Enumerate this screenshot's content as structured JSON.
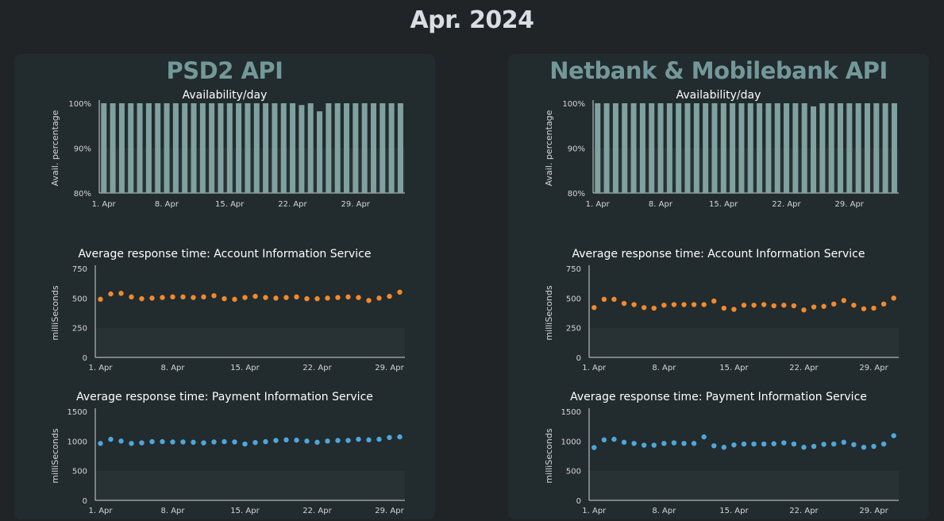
{
  "page": {
    "title": "Apr. 2024"
  },
  "colors": {
    "bar": "#7fa1a0",
    "dot_orange": "#f08a2e",
    "dot_blue": "#4fa6dc",
    "panel_title": "#73989a"
  },
  "panels": [
    {
      "title": "PSD2 API",
      "charts": [
        {
          "type": "bar",
          "title": "Availability/day",
          "ylabel": "Avail. percentage",
          "ylim": [
            80,
            100
          ],
          "yticks": [
            "100%",
            "90%",
            "80%"
          ],
          "xticks": [
            "1. Apr",
            "8. Apr",
            "15. Apr",
            "22. Apr",
            "29. Apr"
          ],
          "values": [
            100,
            100,
            100,
            100,
            100,
            100,
            100,
            100,
            100,
            100,
            100,
            100,
            100,
            100,
            100,
            100,
            100,
            100,
            100,
            100,
            100,
            100,
            99.6,
            100,
            98.2,
            100,
            100,
            100,
            100,
            100,
            100,
            100,
            100,
            100
          ]
        },
        {
          "type": "scatter",
          "title": "Average response time: Account Information Service",
          "ylabel": "milliSeconds",
          "ylim": [
            0,
            750
          ],
          "yticks": [
            "750",
            "500",
            "250",
            "0"
          ],
          "xticks": [
            "1. Apr",
            "8. Apr",
            "15. Apr",
            "22. Apr",
            "29. Apr"
          ],
          "color": "orange",
          "values": [
            490,
            535,
            540,
            510,
            495,
            500,
            505,
            510,
            510,
            505,
            510,
            520,
            495,
            490,
            505,
            515,
            505,
            500,
            505,
            510,
            495,
            495,
            500,
            505,
            510,
            505,
            480,
            500,
            515,
            550
          ]
        },
        {
          "type": "scatter",
          "title": "Average response time: Payment Information Service",
          "ylabel": "milliSeconds",
          "ylim": [
            0,
            1500
          ],
          "yticks": [
            "1500",
            "1000",
            "500",
            "0"
          ],
          "xticks": [
            "1. Apr",
            "8. Apr",
            "15. Apr",
            "22. Apr",
            "29. Apr"
          ],
          "color": "blue",
          "values": [
            960,
            1030,
            1000,
            960,
            970,
            990,
            990,
            985,
            985,
            980,
            970,
            985,
            990,
            985,
            950,
            975,
            990,
            1010,
            1020,
            1015,
            1000,
            980,
            1000,
            1010,
            1010,
            1030,
            1020,
            1030,
            1060,
            1070
          ]
        }
      ]
    },
    {
      "title": "Netbank & Mobilebank API",
      "charts": [
        {
          "type": "bar",
          "title": "Availability/day",
          "ylabel": "Avail. percentage",
          "ylim": [
            80,
            100
          ],
          "yticks": [
            "100%",
            "90%",
            "80%"
          ],
          "xticks": [
            "1. Apr",
            "8. Apr",
            "15. Apr",
            "22. Apr",
            "29. Apr"
          ],
          "values": [
            100,
            100,
            100,
            100,
            100,
            100,
            100,
            100,
            100,
            100,
            100,
            100,
            100,
            100,
            100,
            100,
            100,
            100,
            100,
            100,
            100,
            100,
            100,
            100,
            99.3,
            100,
            100,
            100,
            100,
            100,
            100,
            100,
            100,
            100
          ]
        },
        {
          "type": "scatter",
          "title": "Average response time: Account Information Service",
          "ylabel": "milliSeconds",
          "ylim": [
            0,
            750
          ],
          "yticks": [
            "750",
            "500",
            "250",
            "0"
          ],
          "xticks": [
            "1. Apr",
            "8. Apr",
            "15. Apr",
            "22. Apr",
            "29. Apr"
          ],
          "color": "orange",
          "values": [
            420,
            490,
            490,
            455,
            445,
            420,
            415,
            440,
            445,
            445,
            445,
            445,
            475,
            415,
            405,
            440,
            440,
            445,
            435,
            440,
            435,
            400,
            425,
            430,
            450,
            480,
            440,
            410,
            415,
            450,
            500
          ]
        },
        {
          "type": "scatter",
          "title": "Average response time: Payment Information Service",
          "ylabel": "milliSeconds",
          "ylim": [
            0,
            1500
          ],
          "yticks": [
            "1500",
            "1000",
            "500",
            "0"
          ],
          "xticks": [
            "1. Apr",
            "8. Apr",
            "15. Apr",
            "22. Apr",
            "29. Apr"
          ],
          "color": "blue",
          "values": [
            890,
            1020,
            1030,
            980,
            960,
            930,
            930,
            960,
            970,
            960,
            960,
            1070,
            920,
            895,
            935,
            950,
            950,
            950,
            955,
            970,
            950,
            895,
            910,
            945,
            950,
            980,
            940,
            895,
            910,
            950,
            1090
          ]
        }
      ]
    }
  ]
}
